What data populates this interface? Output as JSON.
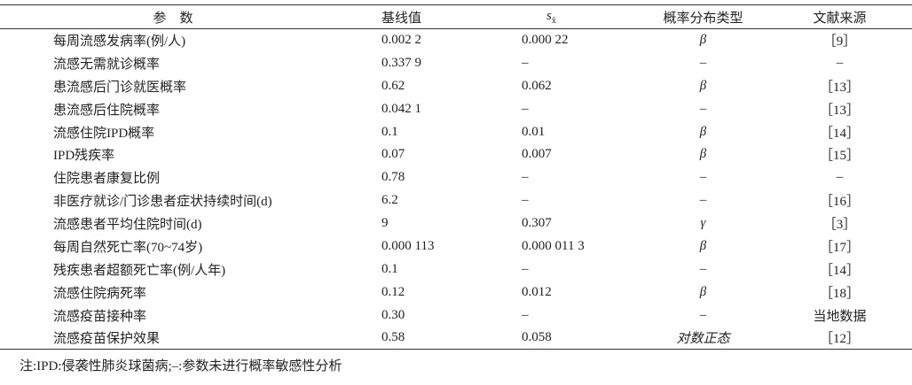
{
  "table": {
    "header": [
      "参　数",
      "基线值",
      "s",
      "概率分布类型",
      "文献来源"
    ],
    "header_sub": "x̄",
    "rows": [
      [
        "每周流感发病率(例/人)",
        "0.002 2",
        "0.000 22",
        "β",
        "［9］"
      ],
      [
        "流感无需就诊概率",
        "0.337 9",
        "–",
        "–",
        "–"
      ],
      [
        "患流感后门诊就医概率",
        "0.62",
        "0.062",
        "β",
        "［13］"
      ],
      [
        "患流感后住院概率",
        "0.042 1",
        "–",
        "–",
        "［13］"
      ],
      [
        "流感住院IPD概率",
        "0.1",
        "0.01",
        "β",
        "［14］"
      ],
      [
        "IPD残疾率",
        "0.07",
        "0.007",
        "β",
        "［15］"
      ],
      [
        "住院患者康复比例",
        "0.78",
        "–",
        "–",
        "–"
      ],
      [
        "非医疗就诊/门诊患者症状持续时间(d)",
        "6.2",
        "–",
        "–",
        "［16］"
      ],
      [
        "流感患者平均住院时间(d)",
        "9",
        "0.307",
        "γ",
        "［3］"
      ],
      [
        "每周自然死亡率(70~74岁)",
        "0.000 113",
        "0.000 011 3",
        "β",
        "［17］"
      ],
      [
        "残疾患者超额死亡率(例/人年)",
        "0.1",
        "–",
        "–",
        "［14］"
      ],
      [
        "流感住院病死率",
        "0.12",
        "0.012",
        "β",
        "［18］"
      ],
      [
        "流感疫苗接种率",
        "0.30",
        "–",
        "–",
        "当地数据"
      ],
      [
        "流感疫苗保护效果",
        "0.58",
        "0.058",
        "对数正态",
        "［12］"
      ]
    ]
  },
  "note": "注:IPD:侵袭性肺炎球菌病;–:参数未进行概率敏感性分析"
}
